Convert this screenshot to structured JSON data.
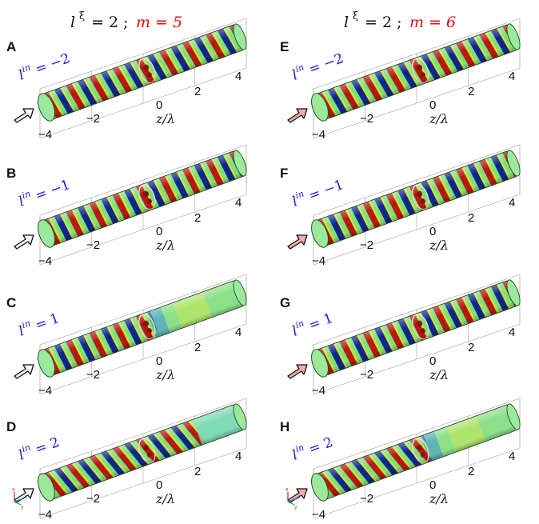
{
  "columns": [
    {
      "l_xi_label": "l",
      "l_xi_sup": "ξ",
      "l_xi_value": "= 2 ;",
      "m_label": "m = 5",
      "arrow_color": "#f2f2f2"
    },
    {
      "l_xi_label": "l",
      "l_xi_sup": "ξ",
      "l_xi_value": "= 2 ;",
      "m_label": "m = 6",
      "arrow_color": "#f4aaaa"
    }
  ],
  "panels": [
    {
      "letter": "A",
      "lin": "= −2",
      "mode": "full"
    },
    {
      "letter": "B",
      "lin": "= −1",
      "mode": "full"
    },
    {
      "letter": "C",
      "lin": "= 1",
      "mode": "cut"
    },
    {
      "letter": "D",
      "lin": "= 2",
      "mode": "fade"
    },
    {
      "letter": "E",
      "lin": "= −2",
      "mode": "full"
    },
    {
      "letter": "F",
      "lin": "= −1",
      "mode": "full"
    },
    {
      "letter": "G",
      "lin": "= 1",
      "mode": "full"
    },
    {
      "letter": "H",
      "lin": "= 2",
      "mode": "cut"
    }
  ],
  "lin_symbol": "l",
  "lin_sup": "in",
  "ticks": [
    "−4",
    "−2",
    "0",
    "2",
    "4"
  ],
  "z_axis_label": "z/λ",
  "triad_labels": [
    "x",
    "z",
    "y"
  ],
  "colors": {
    "red": "#b80f0a",
    "blue": "#0a1c8c",
    "green": "#7de07d",
    "cap": "#9be99b"
  }
}
